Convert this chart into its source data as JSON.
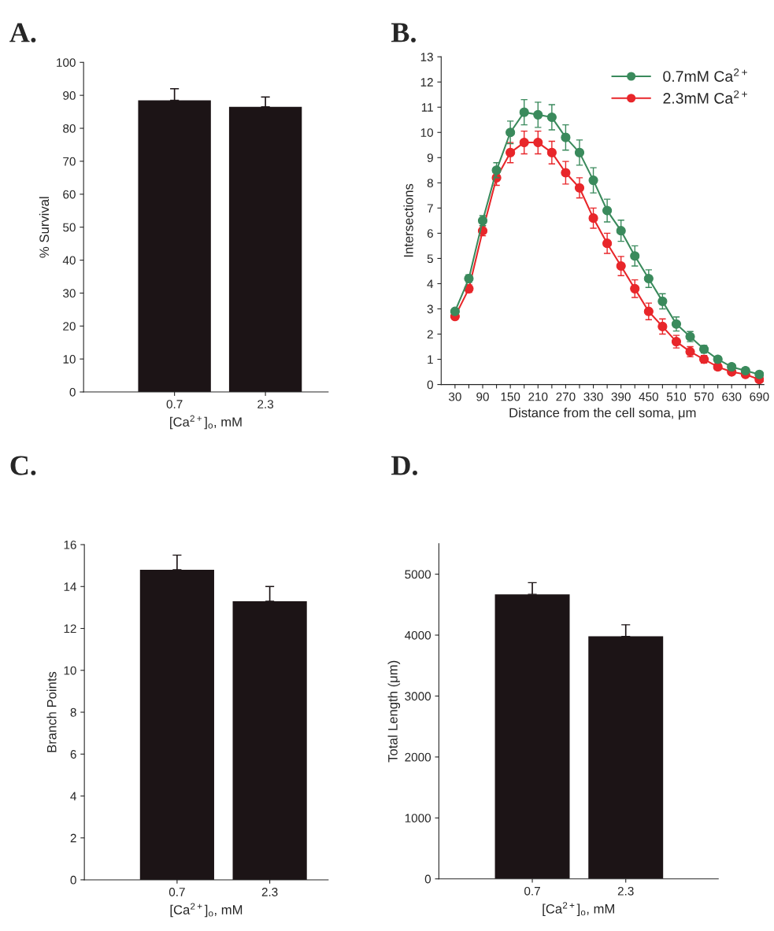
{
  "chart_data": [
    {
      "type": "bar",
      "title": "A.",
      "categories": [
        "0.7",
        "2.3"
      ],
      "values": [
        88.5,
        86.5
      ],
      "errors": [
        3.5,
        3.0
      ],
      "color": "#1c1416",
      "xlabel": "[Ca$^{2+}$]$_{o}$, mM",
      "ylabel": "% Survival",
      "ylim": [
        0,
        100
      ],
      "yticks": [
        0,
        10,
        20,
        30,
        40,
        50,
        60,
        70,
        80,
        90,
        100
      ],
      "grid": false
    },
    {
      "type": "line",
      "title": "B.",
      "x": [
        30,
        60,
        90,
        120,
        150,
        180,
        210,
        240,
        270,
        300,
        330,
        360,
        390,
        420,
        450,
        480,
        510,
        540,
        570,
        600,
        630,
        660,
        690
      ],
      "xlabel": "Distance from the cell soma, μm",
      "ylabel": "Intersections",
      "xlim": [
        0,
        700
      ],
      "ylim": [
        0,
        13
      ],
      "marker": "circle",
      "grid": false,
      "legend": "top right",
      "xticks": [
        30,
        {
          "value": 60,
          "label": null
        },
        90,
        {
          "value": 120,
          "label": null
        },
        150,
        {
          "value": 180,
          "label": null
        },
        210,
        {
          "value": 240,
          "label": null
        },
        270,
        {
          "value": 300,
          "label": null
        },
        330,
        {
          "value": 360,
          "label": null
        },
        390,
        {
          "value": 420,
          "label": null
        },
        450,
        {
          "value": 480,
          "label": null
        },
        510,
        {
          "value": 540,
          "label": null
        },
        570,
        {
          "value": 600,
          "label": null
        },
        630,
        {
          "value": 660,
          "label": null
        },
        690
      ],
      "yticks": [
        0,
        1,
        2,
        3,
        4,
        5,
        6,
        7,
        8,
        9,
        10,
        11,
        12,
        13
      ],
      "series": [
        {
          "name": "0.7mM Ca$^{2+}$",
          "color": "#3a8a5c",
          "values": [
            2.9,
            4.2,
            6.5,
            8.5,
            10.0,
            10.8,
            10.7,
            10.6,
            9.8,
            9.2,
            8.1,
            6.9,
            6.1,
            5.1,
            4.2,
            3.3,
            2.4,
            1.9,
            1.4,
            1.0,
            0.7,
            0.55,
            0.4
          ],
          "errors": [
            0.1,
            0.15,
            0.2,
            0.3,
            0.45,
            0.5,
            0.5,
            0.5,
            0.5,
            0.5,
            0.5,
            0.45,
            0.42,
            0.4,
            0.35,
            0.3,
            0.28,
            0.2,
            0.15,
            0.12,
            0.1,
            0.08,
            0.07
          ]
        },
        {
          "name": "2.3mM Ca$^{2+}$",
          "color": "#e8262a",
          "values": [
            2.7,
            3.8,
            6.1,
            8.2,
            9.2,
            9.6,
            9.6,
            9.2,
            8.4,
            7.8,
            6.6,
            5.6,
            4.7,
            3.8,
            2.9,
            2.3,
            1.7,
            1.3,
            1.0,
            0.7,
            0.5,
            0.4,
            0.2
          ],
          "errors": [
            0.1,
            0.15,
            0.2,
            0.3,
            0.4,
            0.45,
            0.45,
            0.45,
            0.45,
            0.4,
            0.4,
            0.4,
            0.38,
            0.35,
            0.33,
            0.3,
            0.25,
            0.2,
            0.15,
            0.12,
            0.1,
            0.08,
            0.07
          ]
        }
      ]
    },
    {
      "type": "bar",
      "title": "C.",
      "categories": [
        "0.7",
        "2.3"
      ],
      "values": [
        14.8,
        13.3
      ],
      "errors": [
        0.7,
        0.7
      ],
      "color": "#1c1416",
      "xlabel": "[Ca$^{2+}$]$_{o}$, mM",
      "ylabel": "Branch Points",
      "ylim": [
        0,
        16
      ],
      "yticks": [
        0,
        2,
        4,
        6,
        8,
        10,
        12,
        14,
        16
      ],
      "grid": false
    },
    {
      "type": "bar",
      "title": "D.",
      "categories": [
        "0.7",
        "2.3"
      ],
      "values": [
        4670,
        3980
      ],
      "errors": [
        190,
        190
      ],
      "color": "#1c1416",
      "xlabel": "[Ca$^{2+}$]$_{o}$, mM",
      "ylabel": "Total Length (μm)",
      "ylim": [
        0,
        5500
      ],
      "yticks": [
        0,
        1000,
        2000,
        3000,
        4000,
        5000
      ],
      "grid": false
    }
  ]
}
